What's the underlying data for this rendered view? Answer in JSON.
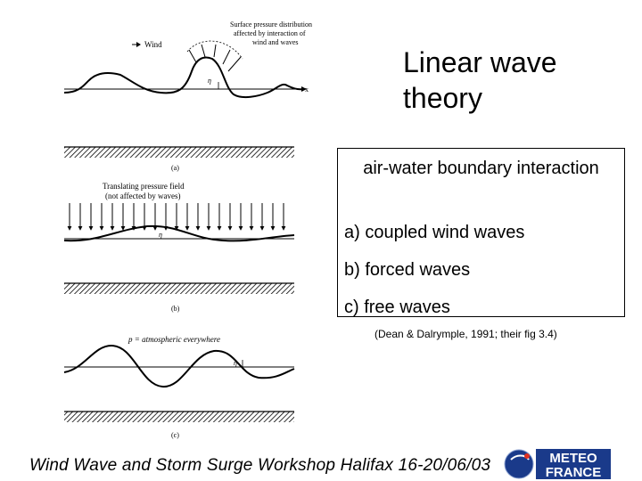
{
  "slide": {
    "title": "Linear wave theory",
    "box": {
      "heading": "air-water boundary interaction",
      "items": [
        "a) coupled wind waves",
        "b) forced waves",
        "c) free waves"
      ]
    },
    "citation": "(Dean & Dalrymple, 1991; their fig 3.4)",
    "footer": "Wind Wave and Storm Surge Workshop Halifax 16-20/06/03"
  },
  "figure": {
    "panel_a": {
      "wind_label": "Wind",
      "annotation": [
        "Surface pressure distribution",
        "affected by interaction of",
        "wind and waves"
      ],
      "eta_label": "η",
      "x_label": "x",
      "caption": "(a)"
    },
    "panel_b": {
      "annotation": [
        "Translating pressure field",
        "(not affected by waves)"
      ],
      "eta_label": "η",
      "caption": "(b)"
    },
    "panel_c": {
      "annotation": "p = atmospheric everywhere",
      "eta_label": "η",
      "caption": "(c)"
    }
  },
  "logo": {
    "line1": "METEO",
    "line2": "FRANCE",
    "colors": {
      "circle": "#1a3a8a",
      "accent": "#e03020",
      "text_bg": "#1a3a8a"
    }
  }
}
